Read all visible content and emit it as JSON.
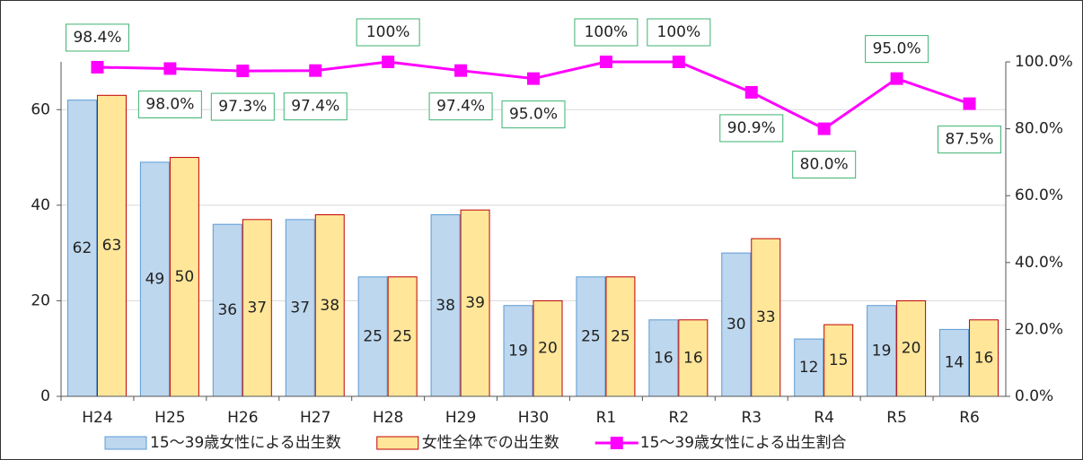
{
  "chart_data": {
    "type": "bar_line",
    "categories": [
      "H24",
      "H25",
      "H26",
      "H27",
      "H28",
      "H29",
      "H30",
      "R1",
      "R2",
      "R3",
      "R4",
      "R5",
      "R6"
    ],
    "series": [
      {
        "name": "15〜39歳女性による出生数",
        "color": "#bdd7ee",
        "edge": "#5b9bd5",
        "type": "bar",
        "values": [
          62,
          49,
          36,
          37,
          25,
          38,
          19,
          25,
          16,
          30,
          12,
          19,
          14
        ]
      },
      {
        "name": "女性全体での出生数",
        "color": "#ffe699",
        "edge": "#c00000",
        "type": "bar",
        "values": [
          63,
          50,
          37,
          38,
          25,
          39,
          20,
          25,
          16,
          33,
          15,
          20,
          16
        ]
      },
      {
        "name": "15〜39歳女性による出生割合",
        "color": "#ff00ff",
        "type": "line",
        "axis": "y2",
        "values": [
          98.4,
          98.0,
          97.3,
          97.4,
          100,
          97.4,
          95.0,
          100,
          100,
          90.9,
          80.0,
          95.0,
          87.5
        ],
        "value_labels": [
          "98.4%",
          "98.0%",
          "97.3%",
          "97.4%",
          "100%",
          "97.4%",
          "95.0%",
          "100%",
          "100%",
          "90.9%",
          "80.0%",
          "95.0%",
          "87.5%"
        ]
      }
    ],
    "ylim": [
      0,
      70
    ],
    "yticks": [
      0,
      20,
      40,
      60
    ],
    "y2lim": [
      0,
      100
    ],
    "y2ticks": [
      {
        "value": 0,
        "label": "0.0%"
      },
      {
        "value": 20,
        "label": "20.0%"
      },
      {
        "value": 40,
        "label": "40.0%"
      },
      {
        "value": 60,
        "label": "60.0%"
      },
      {
        "value": 80,
        "label": "80.0%"
      },
      {
        "value": 100,
        "label": "100.0%"
      }
    ],
    "grid": true,
    "legend": "bottom"
  }
}
